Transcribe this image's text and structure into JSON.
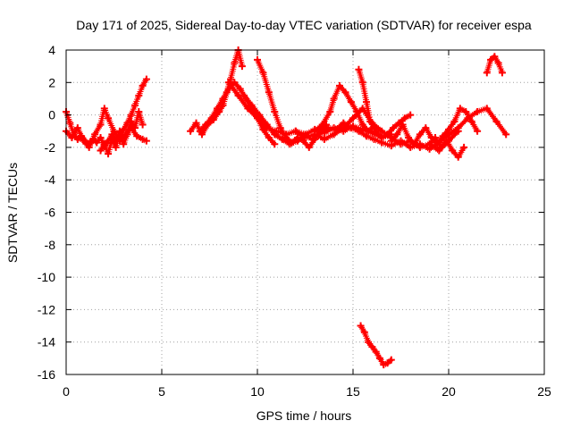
{
  "chart_data": {
    "type": "scatter",
    "title": "Day 171 of 2025, Sidereal Day-to-day VTEC variation (SDTVAR) for receiver espa",
    "xlabel": "GPS time / hours",
    "ylabel": "SDTVAR / TECUs",
    "xlim": [
      0,
      25
    ],
    "ylim": [
      -16,
      4
    ],
    "xticks": [
      0,
      5,
      10,
      15,
      20,
      25
    ],
    "yticks": [
      4,
      2,
      0,
      -2,
      -4,
      -6,
      -8,
      -10,
      -12,
      -14,
      -16
    ],
    "grid": true,
    "marker": "plus",
    "color": "#ff0000",
    "series": [
      {
        "name": "trace-1",
        "x": [
          0.0,
          0.2,
          0.4,
          0.6,
          0.8,
          1.0,
          1.2,
          1.4,
          1.6,
          1.8,
          2.0,
          2.2,
          2.4,
          2.6,
          2.8,
          3.0,
          3.2,
          3.4,
          3.6,
          3.8,
          4.0,
          4.2
        ],
        "y": [
          0.2,
          -0.5,
          -1.2,
          -1.5,
          -1.3,
          -1.6,
          -1.8,
          -1.5,
          -1.7,
          -1.4,
          -1.9,
          -1.6,
          -1.2,
          -1.6,
          -1.1,
          -0.9,
          -0.5,
          0.0,
          0.6,
          1.2,
          1.8,
          2.2
        ]
      },
      {
        "name": "trace-2",
        "x": [
          0.0,
          0.3,
          0.6,
          0.9,
          1.2,
          1.5,
          1.8,
          2.0,
          2.2,
          2.5,
          2.8,
          3.1,
          3.4,
          3.7,
          4.0,
          4.2
        ],
        "y": [
          -1.0,
          -1.4,
          -0.8,
          -1.6,
          -2.0,
          -1.2,
          -0.6,
          0.4,
          -0.2,
          -1.0,
          -1.6,
          -1.2,
          -0.8,
          -1.3,
          -1.5,
          -1.6
        ]
      },
      {
        "name": "trace-3",
        "x": [
          1.8,
          2.0,
          2.2,
          2.4,
          2.6,
          2.8,
          3.0,
          3.2,
          3.4,
          3.6,
          3.8,
          4.0
        ],
        "y": [
          -2.2,
          -1.8,
          -2.4,
          -1.5,
          -2.0,
          -1.0,
          -1.8,
          -1.2,
          -0.4,
          -0.8,
          0.2,
          -0.6
        ]
      },
      {
        "name": "trace-4",
        "x": [
          6.5,
          6.8,
          7.1,
          7.4,
          7.7,
          8.0,
          8.2,
          8.4,
          8.6,
          8.8,
          9.0,
          9.2
        ],
        "y": [
          -1.0,
          -0.5,
          -1.2,
          -0.6,
          -0.3,
          0.2,
          0.6,
          1.4,
          2.2,
          3.2,
          4.0,
          3.0
        ]
      },
      {
        "name": "trace-5",
        "x": [
          7.0,
          7.3,
          7.6,
          7.9,
          8.2,
          8.5,
          8.8,
          9.1,
          9.4,
          9.7,
          10.0,
          10.3,
          10.6,
          10.9
        ],
        "y": [
          -1.0,
          -0.6,
          -0.2,
          0.4,
          1.0,
          1.6,
          2.0,
          1.6,
          1.0,
          0.4,
          -0.2,
          -0.9,
          -1.4,
          -1.8
        ]
      },
      {
        "name": "trace-6",
        "x": [
          8.5,
          9.0,
          9.5,
          10.0,
          10.5,
          11.0,
          11.5,
          12.0,
          12.5,
          13.0,
          13.5,
          14.0,
          14.5,
          15.0,
          15.5,
          16.0,
          16.5,
          17.0
        ],
        "y": [
          2.0,
          1.2,
          0.4,
          -0.2,
          -0.8,
          -1.0,
          -1.2,
          -1.0,
          -1.2,
          -0.9,
          -1.1,
          -0.8,
          -1.0,
          -0.7,
          -0.9,
          -1.1,
          -1.4,
          -1.2
        ]
      },
      {
        "name": "trace-7",
        "x": [
          9.3,
          9.7,
          10.1,
          10.5,
          10.9,
          11.3,
          11.7,
          12.1,
          12.5,
          12.9,
          13.3,
          13.7,
          14.1,
          14.5,
          14.9,
          15.3,
          15.7,
          16.1,
          16.5,
          17.0,
          17.5,
          18.0,
          18.5,
          19.0,
          19.5,
          20.0,
          20.5,
          21.0,
          21.5,
          22.0,
          22.5,
          23.0
        ],
        "y": [
          1.2,
          0.6,
          0.0,
          -0.6,
          -1.2,
          -1.5,
          -1.8,
          -1.6,
          -1.3,
          -1.5,
          -1.1,
          -0.8,
          -0.9,
          -0.5,
          -0.8,
          -1.0,
          -1.3,
          -1.5,
          -1.7,
          -1.9,
          -1.6,
          -2.0,
          -1.8,
          -2.1,
          -1.7,
          -1.2,
          -0.8,
          -0.2,
          0.2,
          0.4,
          -0.4,
          -1.2
        ]
      },
      {
        "name": "trace-8",
        "x": [
          10.0,
          10.3,
          10.6,
          10.9,
          11.2,
          11.5,
          11.8,
          12.1,
          12.4,
          12.7,
          13.0,
          13.3,
          13.6
        ],
        "y": [
          3.4,
          2.6,
          1.4,
          0.2,
          -0.8,
          -1.4,
          -1.7,
          -1.4,
          -1.6,
          -2.0,
          -1.5,
          -1.0,
          -0.6
        ]
      },
      {
        "name": "trace-9",
        "x": [
          12.0,
          12.5,
          13.0,
          13.5,
          14.0,
          14.5,
          15.0,
          15.5,
          16.0,
          16.5,
          17.0,
          17.5,
          18.0,
          18.5,
          19.0,
          19.5,
          20.0,
          20.5
        ],
        "y": [
          -1.0,
          -1.4,
          -1.2,
          -1.5,
          -1.2,
          -0.8,
          -0.2,
          0.4,
          -0.5,
          -1.0,
          -1.4,
          -1.8,
          -1.6,
          -2.0,
          -1.8,
          -2.2,
          -1.6,
          -1.0
        ]
      },
      {
        "name": "trace-10",
        "x": [
          13.0,
          13.4,
          13.8,
          14.0,
          14.3,
          14.6,
          14.9,
          15.2,
          15.5,
          15.8,
          16.1
        ],
        "y": [
          -1.0,
          -0.6,
          0.2,
          1.0,
          1.8,
          1.4,
          0.8,
          0.2,
          -0.6,
          -1.0,
          -0.7
        ]
      },
      {
        "name": "trace-11",
        "x": [
          15.3,
          15.5,
          15.7,
          15.9,
          16.2,
          16.5,
          16.8,
          17.1,
          17.4,
          17.7,
          18.0
        ],
        "y": [
          2.8,
          2.0,
          0.8,
          -0.4,
          -1.0,
          -1.4,
          -1.2,
          -0.8,
          -0.5,
          -0.2,
          0.0
        ]
      },
      {
        "name": "trace-12",
        "x": [
          17.0,
          17.3,
          17.6,
          17.9,
          18.2,
          18.5,
          18.8,
          19.1,
          19.4,
          19.7,
          20.0,
          20.3,
          20.6,
          20.9,
          21.2,
          21.5
        ],
        "y": [
          -1.6,
          -1.2,
          -0.6,
          -1.4,
          -1.8,
          -1.2,
          -0.8,
          -1.4,
          -1.8,
          -1.3,
          -0.9,
          -0.4,
          0.4,
          0.2,
          -0.4,
          -1.0
        ]
      },
      {
        "name": "trace-13",
        "x": [
          19.0,
          19.3,
          19.6,
          19.9,
          20.2,
          20.5,
          20.8
        ],
        "y": [
          -1.8,
          -1.4,
          -2.0,
          -1.6,
          -2.2,
          -2.6,
          -2.0
        ]
      },
      {
        "name": "trace-14",
        "x": [
          22.0,
          22.2,
          22.4,
          22.6,
          22.8
        ],
        "y": [
          2.6,
          3.4,
          3.6,
          3.2,
          2.6
        ]
      },
      {
        "name": "trace-15",
        "x": [
          15.4,
          15.6,
          15.8,
          16.0,
          16.2,
          16.4,
          16.6,
          16.8,
          17.0
        ],
        "y": [
          -13.0,
          -13.4,
          -14.0,
          -14.3,
          -14.6,
          -15.0,
          -15.4,
          -15.3,
          -15.1
        ]
      }
    ]
  }
}
